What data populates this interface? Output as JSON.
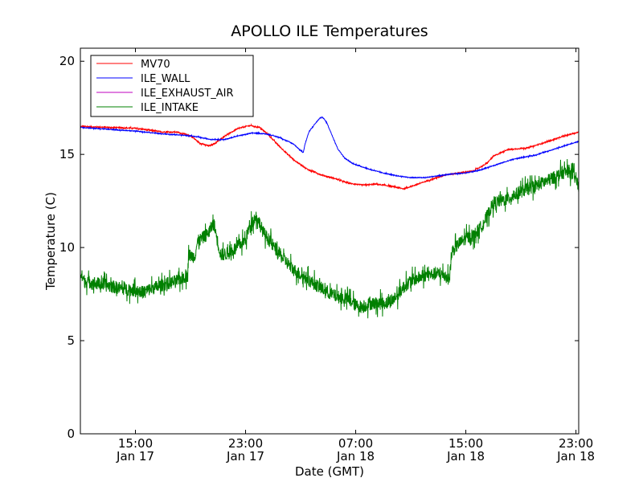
{
  "chart_data": {
    "type": "line",
    "title": "APOLLO ILE Temperatures",
    "xlabel": "Date (GMT)",
    "ylabel": "Temperature (C)",
    "x_unit": "hours from Jan 17 11:00 GMT",
    "xlim": [
      0,
      36.2
    ],
    "ylim": [
      0,
      20.7
    ],
    "grid": false,
    "legend_position": "upper-left",
    "x_ticks": [
      {
        "x": 4,
        "line1": "15:00",
        "line2": "Jan 17"
      },
      {
        "x": 12,
        "line1": "23:00",
        "line2": "Jan 17"
      },
      {
        "x": 20,
        "line1": "07:00",
        "line2": "Jan 18"
      },
      {
        "x": 28,
        "line1": "15:00",
        "line2": "Jan 18"
      },
      {
        "x": 36,
        "line1": "23:00",
        "line2": "Jan 18"
      }
    ],
    "y_ticks": [
      0,
      5,
      10,
      15,
      20
    ],
    "series": [
      {
        "name": "MV70",
        "color": "#ff0000",
        "noise": 0.03,
        "points": [
          [
            0,
            16.5
          ],
          [
            2,
            16.45
          ],
          [
            4,
            16.4
          ],
          [
            6,
            16.2
          ],
          [
            7,
            16.2
          ],
          [
            8,
            16.0
          ],
          [
            8.7,
            15.6
          ],
          [
            9.3,
            15.45
          ],
          [
            9.8,
            15.6
          ],
          [
            10.5,
            16.0
          ],
          [
            11.5,
            16.4
          ],
          [
            12.3,
            16.55
          ],
          [
            13,
            16.45
          ],
          [
            13.6,
            16.1
          ],
          [
            14.5,
            15.4
          ],
          [
            15.5,
            14.7
          ],
          [
            16.5,
            14.2
          ],
          [
            17.5,
            13.9
          ],
          [
            18.5,
            13.7
          ],
          [
            19.5,
            13.45
          ],
          [
            20.5,
            13.35
          ],
          [
            21.5,
            13.4
          ],
          [
            22.5,
            13.3
          ],
          [
            23.5,
            13.15
          ],
          [
            24.5,
            13.4
          ],
          [
            25.5,
            13.65
          ],
          [
            26.5,
            13.9
          ],
          [
            27.5,
            14.0
          ],
          [
            28.5,
            14.1
          ],
          [
            29.5,
            14.5
          ],
          [
            30,
            14.9
          ],
          [
            31,
            15.25
          ],
          [
            32.5,
            15.35
          ],
          [
            34,
            15.7
          ],
          [
            35.2,
            16.0
          ],
          [
            36.2,
            16.2
          ]
        ]
      },
      {
        "name": "ILE_WALL",
        "color": "#0000ff",
        "noise": 0.02,
        "points": [
          [
            0,
            16.45
          ],
          [
            2,
            16.35
          ],
          [
            4,
            16.25
          ],
          [
            6,
            16.1
          ],
          [
            8,
            16.0
          ],
          [
            9.5,
            15.8
          ],
          [
            10.5,
            15.8
          ],
          [
            11.5,
            16.0
          ],
          [
            12.5,
            16.15
          ],
          [
            13.5,
            16.1
          ],
          [
            14.5,
            15.9
          ],
          [
            15.5,
            15.55
          ],
          [
            16,
            15.2
          ],
          [
            16.2,
            15.1
          ],
          [
            16.3,
            15.5
          ],
          [
            16.6,
            16.2
          ],
          [
            17,
            16.6
          ],
          [
            17.4,
            16.95
          ],
          [
            17.6,
            17.0
          ],
          [
            17.9,
            16.7
          ],
          [
            18.3,
            16.0
          ],
          [
            18.7,
            15.3
          ],
          [
            19.2,
            14.8
          ],
          [
            19.8,
            14.5
          ],
          [
            21,
            14.2
          ],
          [
            22,
            14.0
          ],
          [
            23,
            13.85
          ],
          [
            24,
            13.75
          ],
          [
            25,
            13.75
          ],
          [
            26,
            13.85
          ],
          [
            27,
            13.95
          ],
          [
            28,
            14.0
          ],
          [
            29,
            14.15
          ],
          [
            30,
            14.4
          ],
          [
            31.5,
            14.75
          ],
          [
            33,
            14.95
          ],
          [
            34.5,
            15.3
          ],
          [
            36.2,
            15.7
          ]
        ]
      },
      {
        "name": "ILE_EXHAUST_AIR",
        "color": "#bf00bf",
        "points": []
      },
      {
        "name": "ILE_INTAKE",
        "color": "#008000",
        "noise": 0.35,
        "points": [
          [
            0,
            8.6
          ],
          [
            0.3,
            8.2
          ],
          [
            1,
            8.1
          ],
          [
            2,
            7.95
          ],
          [
            3,
            7.8
          ],
          [
            4,
            7.7
          ],
          [
            4.5,
            7.6
          ],
          [
            5,
            7.75
          ],
          [
            6,
            8.0
          ],
          [
            7,
            8.2
          ],
          [
            7.5,
            8.4
          ],
          [
            7.8,
            8.5
          ],
          [
            7.85,
            9.6
          ],
          [
            8.3,
            9.5
          ],
          [
            8.5,
            10.3
          ],
          [
            9.2,
            10.7
          ],
          [
            9.7,
            11.3
          ],
          [
            10,
            10.2
          ],
          [
            10.2,
            9.6
          ],
          [
            10.8,
            9.7
          ],
          [
            11.5,
            10.1
          ],
          [
            12,
            10.4
          ],
          [
            12.3,
            11.2
          ],
          [
            12.8,
            11.7
          ],
          [
            13.3,
            10.8
          ],
          [
            14,
            10.1
          ],
          [
            14.5,
            9.6
          ],
          [
            15,
            9.2
          ],
          [
            15.5,
            8.8
          ],
          [
            16.5,
            8.3
          ],
          [
            17.5,
            7.8
          ],
          [
            18.5,
            7.4
          ],
          [
            19.5,
            7.2
          ],
          [
            20,
            6.9
          ],
          [
            20.5,
            6.8
          ],
          [
            21,
            7.0
          ],
          [
            22,
            7.0
          ],
          [
            22.5,
            7.1
          ],
          [
            23,
            7.4
          ],
          [
            23.5,
            7.9
          ],
          [
            24,
            8.2
          ],
          [
            25,
            8.5
          ],
          [
            26,
            8.6
          ],
          [
            26.5,
            8.5
          ],
          [
            26.8,
            8.3
          ],
          [
            27,
            9.8
          ],
          [
            27.5,
            10.2
          ],
          [
            28,
            10.5
          ],
          [
            28.5,
            10.6
          ],
          [
            29,
            11.0
          ],
          [
            29.5,
            11.6
          ],
          [
            30,
            12.4
          ],
          [
            31,
            12.6
          ],
          [
            32,
            13.0
          ],
          [
            33,
            13.3
          ],
          [
            34,
            13.6
          ],
          [
            35,
            14.0
          ],
          [
            35.5,
            14.1
          ],
          [
            36,
            13.7
          ],
          [
            36.2,
            13.2
          ]
        ]
      }
    ]
  }
}
